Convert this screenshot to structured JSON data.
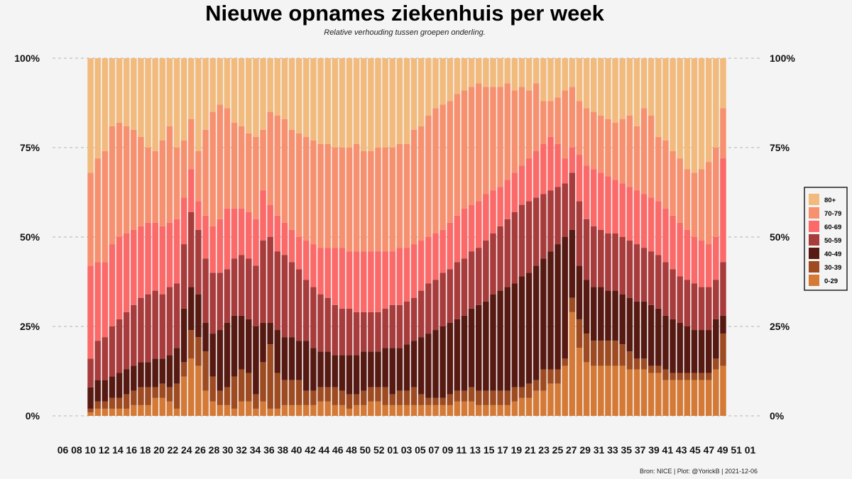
{
  "chart_data": {
    "type": "bar",
    "stacked": true,
    "normalized": true,
    "title": "Nieuwe opnames ziekenhuis per week",
    "subtitle": "Relative verhouding tussen groepen onderling.",
    "caption": "Bron: NICE | Plot: @YorickB |  2021-12-06",
    "ylim": [
      0,
      100
    ],
    "y_ticks": [
      0,
      25,
      50,
      75,
      100
    ],
    "y_tick_labels": [
      "0%",
      "25%",
      "50%",
      "75%",
      "100%"
    ],
    "y_axis": "left and right",
    "grid": "horizontal dashed",
    "legend_position": "right",
    "x_tick_labels": [
      "06",
      "08",
      "10",
      "12",
      "14",
      "16",
      "18",
      "20",
      "22",
      "24",
      "26",
      "28",
      "30",
      "32",
      "34",
      "36",
      "38",
      "40",
      "42",
      "44",
      "46",
      "48",
      "50",
      "52",
      "01",
      "03",
      "05",
      "07",
      "09",
      "11",
      "13",
      "15",
      "17",
      "19",
      "21",
      "23",
      "25",
      "27",
      "29",
      "31",
      "33",
      "35",
      "37",
      "39",
      "41",
      "43",
      "45",
      "47",
      "49",
      "51",
      "01"
    ],
    "x_note": "ISO weeks from week 06 of 2020 to week 01 of 2022; bars present from week 10 of 2020 to week 49 of 2021",
    "legend_order": [
      "80+",
      "70-79",
      "60-69",
      "50-59",
      "40-49",
      "30-39",
      "0-29"
    ],
    "stack_order_bottom_to_top": [
      "0-29",
      "30-39",
      "40-49",
      "50-59",
      "60-69",
      "70-79",
      "80+"
    ],
    "colors": {
      "0-29": "#d57a36",
      "30-39": "#9e4b22",
      "40-49": "#571a13",
      "50-59": "#a83b3b",
      "60-69": "#fb6969",
      "70-79": "#f7906f",
      "80+": "#f2bb7d"
    },
    "cumulative_boundaries_top_of_group": {
      "0-29": [
        1,
        2,
        2,
        2,
        2,
        2,
        3,
        3,
        3,
        5,
        5,
        4,
        2,
        11,
        16,
        14,
        7,
        4,
        3,
        3,
        2,
        4,
        4,
        2,
        4,
        2,
        2,
        3,
        3,
        3,
        3,
        3,
        4,
        4,
        3,
        3,
        2,
        3,
        3,
        4,
        4,
        3,
        3,
        3,
        3,
        3,
        3,
        3,
        3,
        3,
        3,
        4,
        4,
        4,
        3,
        3,
        3,
        3,
        3,
        4,
        5,
        5,
        7,
        7,
        9,
        9,
        14,
        29,
        19,
        15,
        14,
        14,
        14,
        14,
        14,
        13,
        13,
        13,
        12,
        12,
        10,
        10,
        10,
        10,
        10,
        10,
        10,
        13,
        14
      ],
      "30-39": [
        2,
        4,
        4,
        5,
        5,
        6,
        7,
        8,
        8,
        8,
        9,
        8,
        9,
        15,
        24,
        22,
        18,
        11,
        7,
        8,
        11,
        13,
        12,
        6,
        15,
        20,
        12,
        10,
        10,
        10,
        7,
        7,
        8,
        8,
        8,
        7,
        6,
        6,
        7,
        8,
        8,
        8,
        6,
        7,
        7,
        8,
        6,
        5,
        5,
        5,
        6,
        7,
        7,
        8,
        7,
        7,
        7,
        7,
        7,
        8,
        8,
        9,
        10,
        13,
        13,
        13,
        16,
        33,
        27,
        23,
        21,
        21,
        21,
        21,
        20,
        18,
        16,
        16,
        14,
        14,
        13,
        12,
        12,
        12,
        12,
        12,
        12,
        16,
        23
      ],
      "40-49": [
        8,
        10,
        10,
        11,
        12,
        13,
        14,
        15,
        15,
        16,
        16,
        17,
        19,
        30,
        36,
        34,
        26,
        23,
        24,
        26,
        28,
        28,
        27,
        25,
        26,
        26,
        24,
        22,
        22,
        21,
        21,
        19,
        18,
        18,
        17,
        17,
        17,
        17,
        18,
        18,
        18,
        19,
        19,
        19,
        20,
        21,
        22,
        23,
        24,
        25,
        26,
        27,
        28,
        30,
        31,
        32,
        34,
        35,
        36,
        37,
        39,
        40,
        42,
        44,
        46,
        48,
        50,
        52,
        42,
        38,
        36,
        36,
        35,
        35,
        34,
        33,
        32,
        32,
        31,
        30,
        28,
        27,
        26,
        25,
        24,
        24,
        24,
        27,
        28
      ],
      "50-59": [
        16,
        21,
        22,
        25,
        27,
        29,
        31,
        33,
        34,
        35,
        34,
        36,
        37,
        48,
        57,
        52,
        44,
        40,
        40,
        41,
        44,
        45,
        44,
        42,
        49,
        50,
        46,
        45,
        43,
        41,
        38,
        36,
        34,
        33,
        31,
        30,
        30,
        29,
        29,
        29,
        29,
        30,
        31,
        31,
        32,
        33,
        35,
        37,
        38,
        40,
        41,
        43,
        44,
        46,
        47,
        49,
        51,
        53,
        55,
        57,
        59,
        60,
        61,
        62,
        63,
        64,
        65,
        68,
        60,
        55,
        53,
        52,
        51,
        51,
        50,
        49,
        48,
        47,
        46,
        45,
        43,
        41,
        39,
        38,
        37,
        36,
        36,
        38,
        43
      ],
      "60-69": [
        42,
        43,
        43,
        48,
        50,
        51,
        52,
        53,
        54,
        54,
        53,
        54,
        55,
        61,
        69,
        60,
        56,
        53,
        55,
        58,
        58,
        58,
        57,
        55,
        63,
        59,
        56,
        54,
        52,
        50,
        49,
        48,
        47,
        47,
        47,
        47,
        46,
        46,
        46,
        46,
        46,
        46,
        46,
        47,
        47,
        48,
        49,
        50,
        51,
        52,
        54,
        56,
        58,
        59,
        60,
        62,
        63,
        64,
        66,
        68,
        70,
        72,
        74,
        76,
        78,
        76,
        72,
        75,
        73,
        70,
        69,
        68,
        67,
        66,
        65,
        64,
        63,
        62,
        61,
        60,
        58,
        56,
        54,
        52,
        50,
        49,
        48,
        50,
        72
      ],
      "70-79": [
        68,
        72,
        74,
        81,
        82,
        81,
        80,
        78,
        75,
        74,
        77,
        81,
        75,
        77,
        83,
        74,
        80,
        85,
        87,
        86,
        82,
        81,
        79,
        78,
        80,
        85,
        84,
        83,
        80,
        79,
        78,
        77,
        76,
        76,
        75,
        75,
        75,
        76,
        74,
        74,
        75,
        75,
        75,
        76,
        76,
        80,
        81,
        84,
        86,
        87,
        88,
        90,
        91,
        92,
        93,
        92,
        92,
        92,
        93,
        91,
        92,
        91,
        93,
        88,
        88,
        89,
        91,
        92,
        88,
        86,
        85,
        84,
        83,
        82,
        83,
        84,
        81,
        86,
        84,
        78,
        77,
        74,
        72,
        69,
        68,
        69,
        71,
        75,
        86
      ],
      "80+": [
        100,
        100,
        100,
        100,
        100,
        100,
        100,
        100,
        100,
        100,
        100,
        100,
        100,
        100,
        100,
        100,
        100,
        100,
        100,
        100,
        100,
        100,
        100,
        100,
        100,
        100,
        100,
        100,
        100,
        100,
        100,
        100,
        100,
        100,
        100,
        100,
        100,
        100,
        100,
        100,
        100,
        100,
        100,
        100,
        100,
        100,
        100,
        100,
        100,
        100,
        100,
        100,
        100,
        100,
        100,
        100,
        100,
        100,
        100,
        100,
        100,
        100,
        100,
        100,
        100,
        100,
        100,
        100,
        100,
        100,
        100,
        100,
        100,
        100,
        100,
        100,
        100,
        100,
        100,
        100,
        100,
        100,
        100,
        100,
        100,
        100,
        100,
        100,
        100
      ]
    }
  }
}
